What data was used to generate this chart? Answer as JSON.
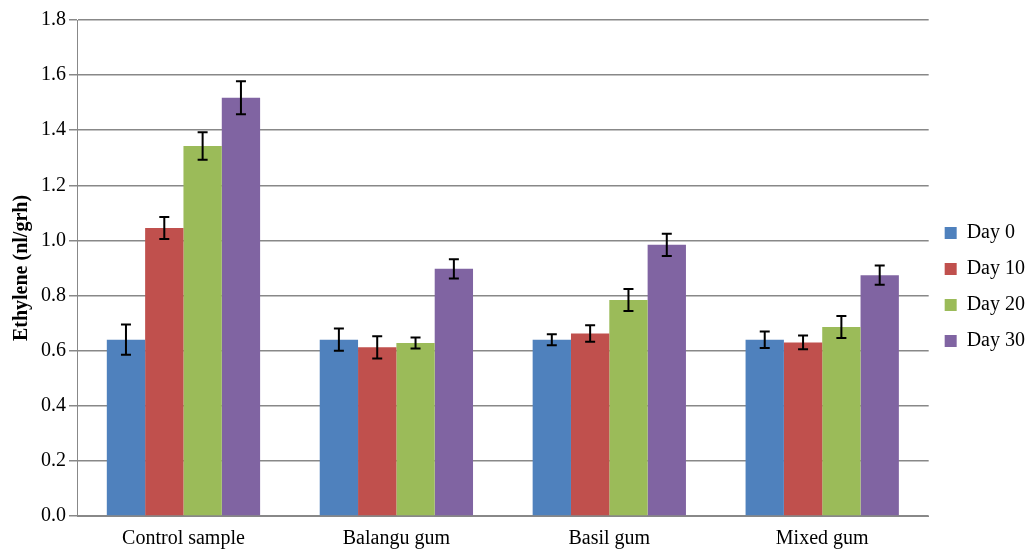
{
  "chart_data": {
    "type": "bar",
    "ylabel": "Ethylene (nl/grh)",
    "categories": [
      "Control sample",
      "Balangu gum",
      "Basil gum",
      "Mixed gum"
    ],
    "series": [
      {
        "name": "Day 0",
        "color": "#4f81bd",
        "values": [
          0.64,
          0.64,
          0.64,
          0.64
        ],
        "errors": [
          0.055,
          0.04,
          0.02,
          0.03
        ]
      },
      {
        "name": "Day 10",
        "color": "#c0504d",
        "values": [
          1.045,
          0.612,
          0.662,
          0.63
        ],
        "errors": [
          0.04,
          0.04,
          0.03,
          0.025
        ]
      },
      {
        "name": "Day 20",
        "color": "#9bbb59",
        "values": [
          1.343,
          0.628,
          0.784,
          0.686
        ],
        "errors": [
          0.05,
          0.02,
          0.04,
          0.04
        ]
      },
      {
        "name": "Day 30",
        "color": "#8064a2",
        "values": [
          1.518,
          0.897,
          0.984,
          0.874
        ],
        "errors": [
          0.06,
          0.035,
          0.04,
          0.035
        ]
      }
    ],
    "ylim": [
      0,
      1.8
    ],
    "yticks": [
      {
        "value": 0,
        "label": "0.0"
      },
      {
        "value": 0.2,
        "label": "0.2"
      },
      {
        "value": 0.4,
        "label": "0.4"
      },
      {
        "value": 0.6,
        "label": "0.6"
      },
      {
        "value": 0.8,
        "label": "0.8"
      },
      {
        "value": 1,
        "label": "1.0"
      },
      {
        "value": 1.2,
        "label": "1.2"
      },
      {
        "value": 1.4,
        "label": "1.4"
      },
      {
        "value": 1.6,
        "label": "1.6"
      },
      {
        "value": 1.8,
        "label": "1.8"
      }
    ],
    "grid": "y",
    "legend": "right"
  }
}
